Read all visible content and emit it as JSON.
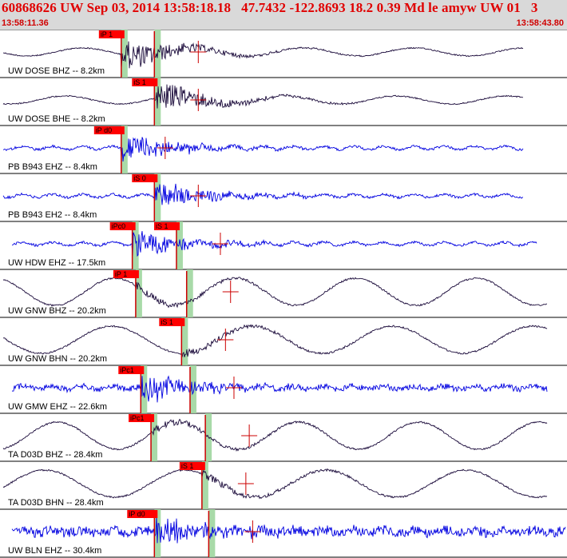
{
  "header": {
    "title": "60868626 UW Sep 03, 2014 13:58:18.18   47.7432 -122.8693 18.2 0.39 Md le amyw UW 01   3",
    "time_start": "13:58:11.36",
    "time_end": "13:58:43.80"
  },
  "colors": {
    "title": "#e00000",
    "trace_dark": "#1a0a3a",
    "trace_blue": "#0000e0",
    "pick_band": "#9ed69e",
    "pick_label_bg": "#ff0000",
    "pick_line": "#cc0000"
  },
  "chart_data": {
    "type": "line",
    "xlim": [
      "13:58:11.36",
      "13:58:43.80"
    ],
    "traces": [
      {
        "label": "UW DOSE BHZ -- 8.2km",
        "color": "dark",
        "picks": [
          {
            "label": "iP 1",
            "t": 6.95
          },
          {
            "label": "",
            "t": 8.9
          }
        ]
      },
      {
        "label": "UW DOSE BHE -- 8.2km",
        "color": "dark",
        "picks": [
          {
            "label": "iS 1",
            "t": 8.9
          }
        ]
      },
      {
        "label": "PB B943 EHZ -- 8.4km",
        "color": "blue",
        "picks": [
          {
            "label": "iP d0",
            "t": 6.95
          }
        ]
      },
      {
        "label": "PB B943 EH2 -- 8.4km",
        "color": "blue",
        "picks": [
          {
            "label": "iS 0",
            "t": 8.9
          }
        ]
      },
      {
        "label": "UW HDW EHZ -- 17.5km",
        "color": "blue",
        "picks": [
          {
            "label": "iPc0",
            "t": 7.6
          },
          {
            "label": "iS 1",
            "t": 10.2
          }
        ]
      },
      {
        "label": "UW GNW BHZ -- 20.2km",
        "color": "dark",
        "picks": [
          {
            "label": "iP 1",
            "t": 7.8
          },
          {
            "label": "",
            "t": 10.8
          }
        ]
      },
      {
        "label": "UW GNW BHN -- 20.2km",
        "color": "dark",
        "picks": [
          {
            "label": "iS 1",
            "t": 10.5
          }
        ]
      },
      {
        "label": "UW GMW EHZ -- 22.6km",
        "color": "blue",
        "picks": [
          {
            "label": "iPc1",
            "t": 8.1
          },
          {
            "label": "",
            "t": 11.0
          }
        ]
      },
      {
        "label": "TA D03D BHZ -- 28.4km",
        "color": "dark",
        "picks": [
          {
            "label": "iPc1",
            "t": 8.7
          },
          {
            "label": "",
            "t": 11.9
          }
        ]
      },
      {
        "label": "TA D03D BHN -- 28.4km",
        "color": "dark",
        "picks": [
          {
            "label": "iS 1",
            "t": 11.7
          }
        ]
      },
      {
        "label": "UW BLN EHZ -- 30.4km",
        "color": "blue",
        "picks": [
          {
            "label": "iP d0",
            "t": 8.9
          },
          {
            "label": "",
            "t": 12.1
          }
        ]
      }
    ]
  }
}
